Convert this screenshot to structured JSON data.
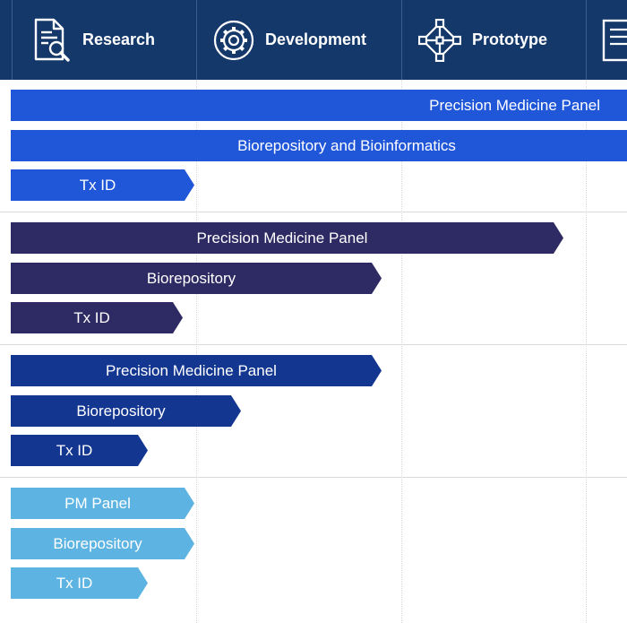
{
  "header": {
    "stages": [
      {
        "label": "Research",
        "icon": "document-search-icon"
      },
      {
        "label": "Development",
        "icon": "gear-icon"
      },
      {
        "label": "Prototype",
        "icon": "network-diamond-icon"
      },
      {
        "label": "",
        "icon": "document-icon"
      }
    ]
  },
  "colors": {
    "header": "#15386b",
    "group1": "#2057d8",
    "group2": "#2e2a63",
    "group3": "#133690",
    "group4": "#5db4e2"
  },
  "groups": [
    {
      "bars": [
        {
          "label": "Precision Medicine Panel"
        },
        {
          "label": "Biorepository and Bioinformatics"
        },
        {
          "label": "Tx ID"
        }
      ]
    },
    {
      "bars": [
        {
          "label": "Precision Medicine Panel"
        },
        {
          "label": "Biorepository"
        },
        {
          "label": "Tx ID"
        }
      ]
    },
    {
      "bars": [
        {
          "label": "Precision Medicine Panel"
        },
        {
          "label": "Biorepository"
        },
        {
          "label": "Tx ID"
        }
      ]
    },
    {
      "bars": [
        {
          "label": "PM Panel"
        },
        {
          "label": "Biorepository"
        },
        {
          "label": "Tx ID"
        }
      ]
    }
  ]
}
